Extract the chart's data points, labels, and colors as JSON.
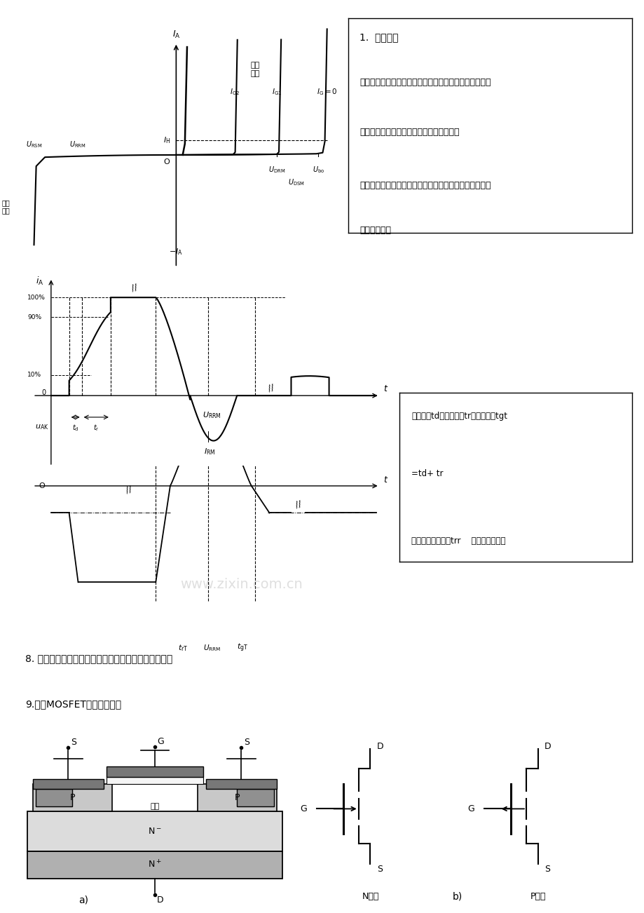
{
  "bg_color": "#ffffff",
  "text_color": "#000000",
  "box1_text": [
    "1.  静态特性",
    "",
    "承受反向电压时，不管门极与否有触发电流，晶闸管都不",
    "",
    "会导通；伏安特性类似二极管的反向特性；",
    "",
    "承受正向电压时，仅在门极有触发电流的状况下晶闸管才",
    "",
    "能开通，或："
  ],
  "box2_text": [
    "延迟时间td、上升时间tr、开通时间tgt",
    "",
    "=td+ tr",
    "",
    "反向阻断恢复时间trr    正向阻断恢复时"
  ],
  "label_section8": "8. 晶闸管旳重要参数：电压定额、电流定额、动态参数",
  "label_section9": "9.电力MOSFET的基本特性：",
  "mosfet_label_a": "a)",
  "mosfet_label_b": "b)",
  "mosfet_label_nchannel": "N沟道",
  "mosfet_label_pchannel": "P沟道",
  "watermark": "www.zixin.com.cn"
}
